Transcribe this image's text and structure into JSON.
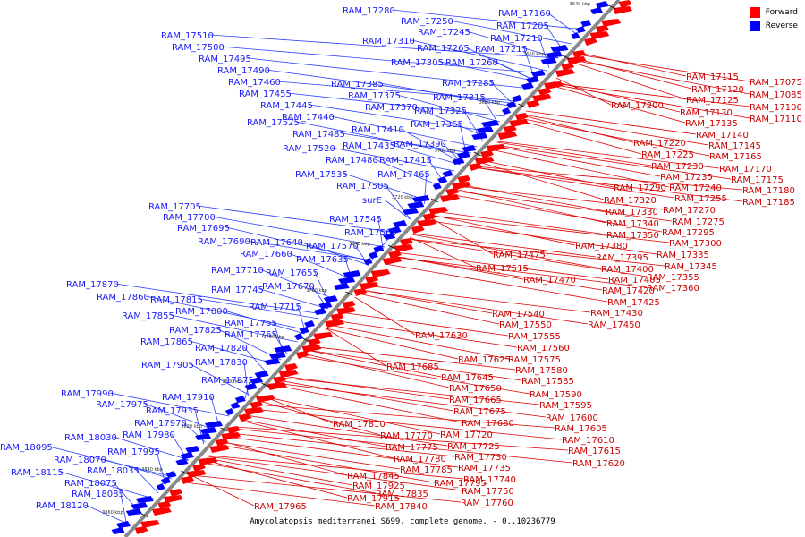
{
  "legend": {
    "forward": "Forward",
    "reverse": "Reverse",
    "forward_color": "#ff0000",
    "reverse_color": "#0000ff"
  },
  "caption": "Amycolatopsis mediterranei S699, complete genome. - 0..10236779",
  "ticks": [
    "3640 kbp",
    "3660 kbp",
    "3680 kbp",
    "3700 kbp",
    "3720 kbp",
    "3740 kbp",
    "3760 kbp",
    "3780 kbp",
    "3800 kbp",
    "3820 kbp",
    "3840 kbp",
    "3860 kbp"
  ],
  "reverse_labels": [
    "RAM_17280",
    "RAM_17250",
    "RAM_17245",
    "RAM_17310",
    "RAM_17265",
    "RAM_17305",
    "RAM_17160",
    "RAM_17205",
    "RAM_17210",
    "RAM_17215",
    "RAM_17260",
    "RAM_17285",
    "RAM_17315",
    "RAM_17325",
    "RAM_17365",
    "RAM_17390",
    "RAM_17385",
    "RAM_17375",
    "RAM_17370",
    "RAM_17410",
    "RAM_17435",
    "RAM_17415",
    "RAM_17480",
    "RAM_17465",
    "RAM_17505",
    "surE",
    "RAM_17510",
    "RAM_17500",
    "RAM_17495",
    "RAM_17490",
    "RAM_17460",
    "RAM_17455",
    "RAM_17445",
    "RAM_17440",
    "RAM_17525",
    "RAM_17485",
    "RAM_17520",
    "RAM_17535",
    "RAM_17545",
    "RAM_17565",
    "RAM_17570",
    "RAM_17635",
    "RAM_17705",
    "RAM_17700",
    "RAM_17695",
    "RAM_17690",
    "RAM_17640",
    "RAM_17660",
    "RAM_17710",
    "RAM_17655",
    "RAM_17745",
    "RAM_17670",
    "RAM_17715",
    "RAM_17870",
    "RAM_17860",
    "RAM_17815",
    "RAM_17800",
    "RAM_17855",
    "RAM_17825",
    "RAM_17755",
    "RAM_17765",
    "RAM_17865",
    "RAM_17820",
    "RAM_17905",
    "RAM_17830",
    "RAM_17875",
    "RAM_17990",
    "RAM_17975",
    "RAM_17910",
    "RAM_17935",
    "RAM_17970",
    "RAM_18030",
    "RAM_17980",
    "RAM_18095",
    "RAM_17995",
    "RAM_18070",
    "RAM_18035",
    "RAM_18115",
    "RAM_18075",
    "RAM_18085",
    "RAM_18120"
  ],
  "forward_labels": [
    "RAM_17115",
    "RAM_17075",
    "RAM_17120",
    "RAM_17085",
    "RAM_17125",
    "RAM_17100",
    "RAM_17200",
    "RAM_17130",
    "RAM_17110",
    "RAM_17135",
    "RAM_17140",
    "RAM_17220",
    "RAM_17145",
    "RAM_17225",
    "RAM_17165",
    "RAM_17230",
    "RAM_17170",
    "RAM_17235",
    "RAM_17175",
    "RAM_17240",
    "RAM_17180",
    "RAM_17290",
    "RAM_17255",
    "RAM_17185",
    "RAM_17320",
    "RAM_17270",
    "RAM_17330",
    "RAM_17275",
    "RAM_17340",
    "RAM_17295",
    "RAM_17350",
    "RAM_17300",
    "RAM_17380",
    "RAM_17335",
    "RAM_17475",
    "RAM_17395",
    "RAM_17345",
    "RAM_17515",
    "RAM_17400",
    "RAM_17355",
    "RAM_17470",
    "RAM_17405",
    "RAM_17360",
    "RAM_17420",
    "RAM_17425",
    "RAM_17540",
    "RAM_17430",
    "RAM_17550",
    "RAM_17450",
    "RAM_17630",
    "RAM_17555",
    "RAM_17560",
    "RAM_17625",
    "RAM_17575",
    "RAM_17685",
    "RAM_17580",
    "RAM_17645",
    "RAM_17585",
    "RAM_17650",
    "RAM_17590",
    "RAM_17665",
    "RAM_17595",
    "RAM_17675",
    "RAM_17600",
    "RAM_17680",
    "RAM_17605",
    "RAM_17810",
    "RAM_17610",
    "RAM_17770",
    "RAM_17720",
    "RAM_17615",
    "RAM_17775",
    "RAM_17725",
    "RAM_17620",
    "RAM_17780",
    "RAM_17730",
    "RAM_17785",
    "RAM_17735",
    "RAM_17845",
    "RAM_17795",
    "RAM_17740",
    "RAM_17925",
    "RAM_17835",
    "RAM_17750",
    "RAM_17915",
    "RAM_17840",
    "RAM_17760",
    "RAM_17965"
  ]
}
